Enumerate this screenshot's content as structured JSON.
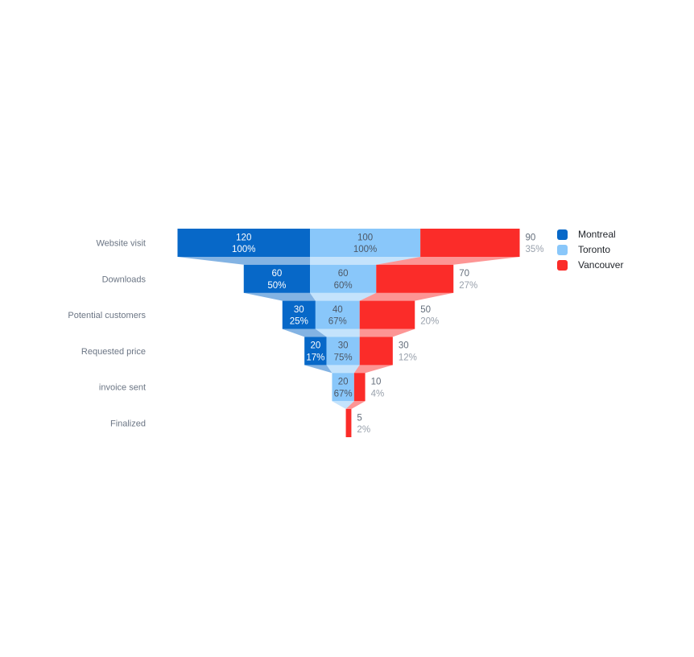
{
  "page": {
    "background": "#ffffff"
  },
  "chart_data": {
    "type": "funnel",
    "title": "",
    "orientation": "vertical",
    "legend_position": "right-top",
    "grid": false,
    "stages": [
      "Website visit",
      "Downloads",
      "Potential customers",
      "Requested price",
      "invoice sent",
      "Finalized"
    ],
    "series": [
      {
        "name": "Montreal",
        "color": "#0768C8",
        "label_placement": "inside",
        "value_color": "#FFFFFF",
        "percent_color": "#FFFFFF",
        "values": [
          120,
          60,
          30,
          20,
          0,
          0
        ],
        "percents": [
          "100%",
          "50%",
          "25%",
          "17%",
          "",
          ""
        ]
      },
      {
        "name": "Toronto",
        "color": "#89C7FA",
        "label_placement": "inside",
        "value_color": "#4D5866",
        "percent_color": "#4D5866",
        "values": [
          100,
          60,
          40,
          30,
          20,
          0
        ],
        "percents": [
          "100%",
          "60%",
          "67%",
          "75%",
          "67%",
          ""
        ]
      },
      {
        "name": "Vancouver",
        "color": "#FB2C29",
        "label_placement": "outside-right",
        "value_color": "#646E7B",
        "percent_color": "#99A1AC",
        "values": [
          90,
          70,
          50,
          30,
          10,
          5
        ],
        "percents": [
          "35%",
          "27%",
          "20%",
          "12%",
          "4%",
          "2%"
        ]
      }
    ],
    "stage_label_color": "#6B7584",
    "legend_text_color": "#1F2329",
    "link_opacity": 0.5
  }
}
